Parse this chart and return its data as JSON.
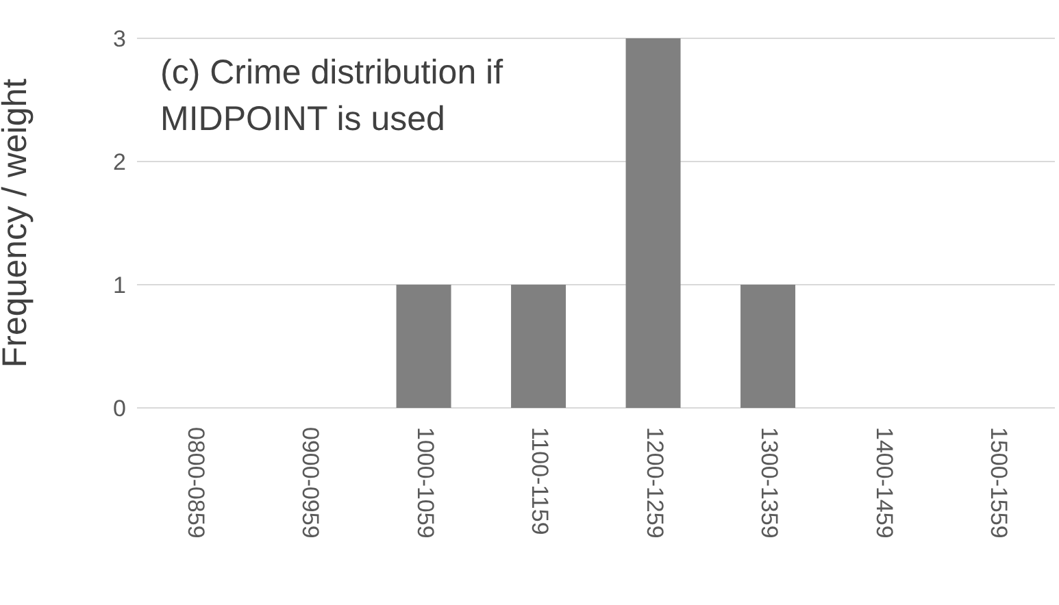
{
  "chart_data": {
    "type": "bar",
    "title": "(c) Crime distribution if MIDPOINT is used",
    "ylabel": "Frequency / weight",
    "categories": [
      "0800-0859",
      "0900-0959",
      "1000-1059",
      "1100-1159",
      "1200-1259",
      "1300-1359",
      "1400-1459",
      "1500-1559"
    ],
    "values": [
      0,
      0,
      1,
      1,
      3,
      1,
      0,
      0
    ],
    "color": "#808080",
    "ylim": [
      0,
      3
    ],
    "yticks": [
      0,
      1,
      2,
      3
    ],
    "grid": "y"
  }
}
